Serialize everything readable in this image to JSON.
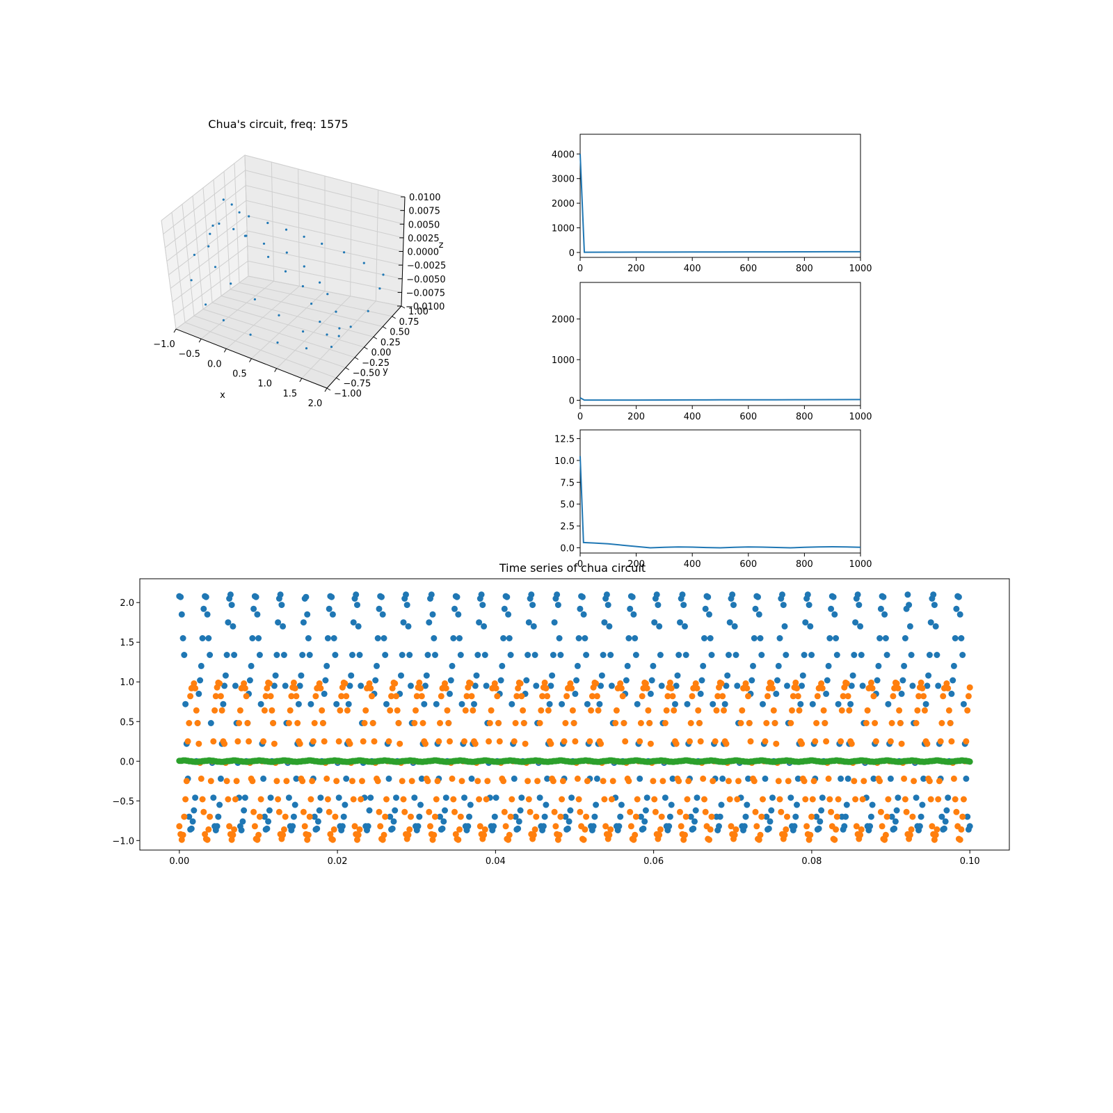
{
  "colors": {
    "c0": "#1f77b4",
    "c1": "#ff7f0e",
    "c2": "#2ca02c"
  },
  "chart_data": [
    {
      "type": "scatter",
      "projection": "3d",
      "title": "Chua's circuit, freq: 1575",
      "xlabel": "x",
      "ylabel": "y",
      "zlabel": "z",
      "xlim": [
        -1.0,
        2.0
      ],
      "ylim": [
        -1.0,
        1.0
      ],
      "zlim": [
        -0.01,
        0.01
      ],
      "xticks": [
        "−1.0",
        "−0.5",
        "0.0",
        "0.5",
        "1.0",
        "1.5",
        "2.0"
      ],
      "yticks": [
        "−1.00",
        "−0.75",
        "−0.50",
        "−0.25",
        "0.00",
        "0.25",
        "0.50",
        "0.75",
        "1.00"
      ],
      "zticks": [
        "−0.0100",
        "−0.0075",
        "−0.0050",
        "−0.0025",
        "0.0000",
        "0.0025",
        "0.0050",
        "0.0075",
        "0.0100"
      ],
      "grid": true,
      "series": [
        {
          "color": "#1f77b4",
          "points": [
            [
              -0.95,
              0.55,
              0.006
            ],
            [
              -0.85,
              0.62,
              0.005
            ],
            [
              -0.6,
              0.7,
              0.003
            ],
            [
              -0.3,
              0.78,
              0.002
            ],
            [
              0.0,
              0.85,
              0.001
            ],
            [
              0.3,
              0.9,
              0.0
            ],
            [
              0.6,
              0.95,
              -0.001
            ],
            [
              1.0,
              0.98,
              -0.002
            ],
            [
              1.4,
              0.95,
              -0.003
            ],
            [
              1.8,
              0.9,
              -0.004
            ],
            [
              1.95,
              0.6,
              -0.004
            ],
            [
              2.0,
              0.2,
              -0.005
            ],
            [
              1.95,
              -0.2,
              -0.005
            ],
            [
              1.85,
              -0.6,
              -0.006
            ],
            [
              1.5,
              -0.8,
              -0.006
            ],
            [
              1.0,
              -0.9,
              -0.006
            ],
            [
              0.5,
              -0.95,
              -0.006
            ],
            [
              0.0,
              -0.98,
              -0.005
            ],
            [
              -0.4,
              -0.9,
              -0.004
            ],
            [
              -0.8,
              -0.7,
              -0.002
            ],
            [
              -1.0,
              -0.3,
              0.0
            ],
            [
              -0.95,
              0.1,
              0.002
            ],
            [
              -0.9,
              0.3,
              0.003
            ],
            [
              -0.7,
              0.4,
              0.002
            ],
            [
              -0.5,
              0.45,
              0.001
            ],
            [
              -0.2,
              0.5,
              0.0
            ],
            [
              0.2,
              0.55,
              -0.001
            ],
            [
              0.6,
              0.45,
              -0.002
            ],
            [
              1.0,
              0.3,
              -0.003
            ],
            [
              1.3,
              0.1,
              -0.003
            ],
            [
              1.6,
              -0.1,
              -0.004
            ],
            [
              1.8,
              -0.3,
              -0.005
            ],
            [
              1.7,
              -0.5,
              -0.005
            ],
            [
              1.3,
              -0.6,
              -0.005
            ],
            [
              0.8,
              -0.55,
              -0.004
            ],
            [
              0.3,
              -0.5,
              -0.003
            ],
            [
              -0.2,
              -0.45,
              -0.002
            ],
            [
              -0.6,
              -0.3,
              -0.001
            ],
            [
              -0.85,
              -0.1,
              0.001
            ],
            [
              -0.95,
              0.2,
              0.003
            ],
            [
              -0.7,
              0.6,
              0.004
            ],
            [
              -0.4,
              0.3,
              0.002
            ],
            [
              0.1,
              0.2,
              0.0
            ],
            [
              0.5,
              0.1,
              -0.001
            ],
            [
              0.9,
              0.0,
              -0.002
            ],
            [
              1.2,
              -0.2,
              -0.003
            ],
            [
              1.5,
              -0.4,
              -0.004
            ],
            [
              1.9,
              -0.45,
              -0.005
            ]
          ]
        }
      ]
    },
    {
      "type": "line",
      "xlim": [
        0,
        1000
      ],
      "ylim": [
        -200,
        4800
      ],
      "xticks": [
        0,
        200,
        400,
        600,
        800,
        1000
      ],
      "yticks": [
        0,
        1000,
        2000,
        3000,
        4000
      ],
      "series": [
        {
          "color": "#1f77b4",
          "x": [
            0,
            15,
            100,
            200,
            300,
            400,
            500,
            600,
            700,
            800,
            900,
            1000
          ],
          "y": [
            4000,
            10,
            12,
            14,
            16,
            18,
            20,
            22,
            24,
            26,
            28,
            30
          ]
        }
      ]
    },
    {
      "type": "line",
      "xlim": [
        0,
        1000
      ],
      "ylim": [
        -130,
        2900
      ],
      "xticks": [
        0,
        200,
        400,
        600,
        800,
        1000
      ],
      "yticks": [
        0,
        1000,
        2000
      ],
      "series": [
        {
          "color": "#1f77b4",
          "x": [
            0,
            15,
            100,
            200,
            300,
            400,
            500,
            600,
            700,
            800,
            900,
            1000
          ],
          "y": [
            60,
            5,
            5,
            6,
            7,
            8,
            10,
            11,
            12,
            14,
            16,
            18
          ]
        }
      ]
    },
    {
      "type": "line",
      "xlim": [
        0,
        1000
      ],
      "ylim": [
        -0.6,
        13.5
      ],
      "xticks": [
        0,
        200,
        400,
        600,
        800,
        1000
      ],
      "yticks": [
        "0.0",
        "2.5",
        "5.0",
        "7.5",
        "10.0",
        "12.5"
      ],
      "series": [
        {
          "color": "#1f77b4",
          "x": [
            0,
            12,
            50,
            100,
            150,
            200,
            250,
            300,
            350,
            400,
            450,
            500,
            550,
            600,
            650,
            700,
            750,
            800,
            850,
            900,
            950,
            1000
          ],
          "y": [
            10.5,
            0.6,
            0.55,
            0.45,
            0.3,
            0.15,
            0.0,
            0.05,
            0.1,
            0.08,
            0.03,
            0.0,
            0.05,
            0.1,
            0.08,
            0.04,
            0.0,
            0.05,
            0.1,
            0.12,
            0.1,
            0.05
          ]
        }
      ]
    },
    {
      "type": "scatter",
      "title": "Time series of chua circuit",
      "xlim": [
        -0.005,
        0.105
      ],
      "ylim": [
        -1.12,
        2.3
      ],
      "xticks": [
        "0.00",
        "0.02",
        "0.04",
        "0.06",
        "0.08",
        "0.10"
      ],
      "yticks": [
        "−1.0",
        "−0.5",
        "0.0",
        "0.5",
        "1.0",
        "1.5",
        "2.0"
      ],
      "x": {
        "start": 0.0,
        "stop": 0.1,
        "count": 650
      },
      "series": [
        {
          "color": "#1f77b4",
          "period": 0.0031746,
          "phase": 0.0,
          "cycle": [
            2.08,
            2.1,
            2.07,
            1.97,
            1.85,
            1.7,
            1.55,
            1.34,
            1.34,
            0.95,
            0.72,
            0.48,
            0.22,
            -0.02,
            -0.22,
            -0.46,
            -0.7,
            -0.82,
            -0.86,
            -0.87,
            -0.85,
            -0.82,
            -0.76,
            -0.7,
            -0.62,
            -0.55,
            -0.46,
            -0.22,
            0.0,
            0.22,
            0.48,
            0.72,
            0.85,
            0.95,
            1.02,
            1.08,
            1.2,
            1.34,
            1.55,
            1.75,
            1.92,
            2.05
          ]
        },
        {
          "color": "#ff7f0e",
          "period": 0.0031746,
          "phase": 0.5,
          "cycle": [
            0.93,
            0.99,
            0.98,
            0.92,
            0.82,
            0.64,
            0.48,
            0.25,
            0.22,
            -0.02,
            -0.22,
            -0.25,
            -0.48,
            -0.64,
            -0.82,
            -0.92,
            -0.98,
            -0.99,
            -0.93,
            -0.86,
            -0.7,
            -0.48,
            -0.25,
            0.0,
            0.25,
            0.48,
            0.64,
            0.82,
            0.92
          ]
        },
        {
          "color": "#2ca02c",
          "period": 0.0031746,
          "phase": 0.0,
          "cycle": [
            0.005,
            0.01,
            0.006,
            0.0,
            -0.005,
            -0.008,
            -0.004,
            0.002
          ]
        }
      ]
    }
  ]
}
